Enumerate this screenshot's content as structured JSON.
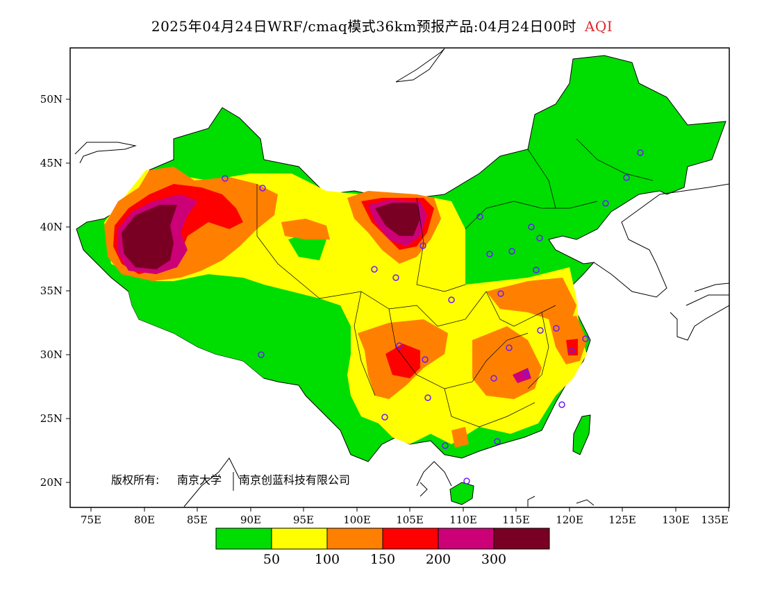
{
  "title": {
    "main": "2025年04月24日WRF/cmaq模式36km预报产品:04月24日00时",
    "variable": "AQI"
  },
  "map": {
    "lat_ticks": [
      "50N",
      "45N",
      "40N",
      "35N",
      "30N",
      "25N",
      "20N"
    ],
    "lon_ticks": [
      "75E",
      "80E",
      "85E",
      "90E",
      "95E",
      "100E",
      "105E",
      "110E",
      "115E",
      "120E",
      "125E",
      "130E",
      "135E"
    ],
    "copyright_prefix": "版权所有:",
    "copyright_org1": "南京大学",
    "copyright_org2": "南京创蓝科技有限公司"
  },
  "legend": {
    "colors": [
      "#00dd00",
      "#ffff00",
      "#ff8000",
      "#ff0000",
      "#cc0077",
      "#7a0023"
    ],
    "labels": [
      "50",
      "100",
      "150",
      "200",
      "300"
    ]
  }
}
